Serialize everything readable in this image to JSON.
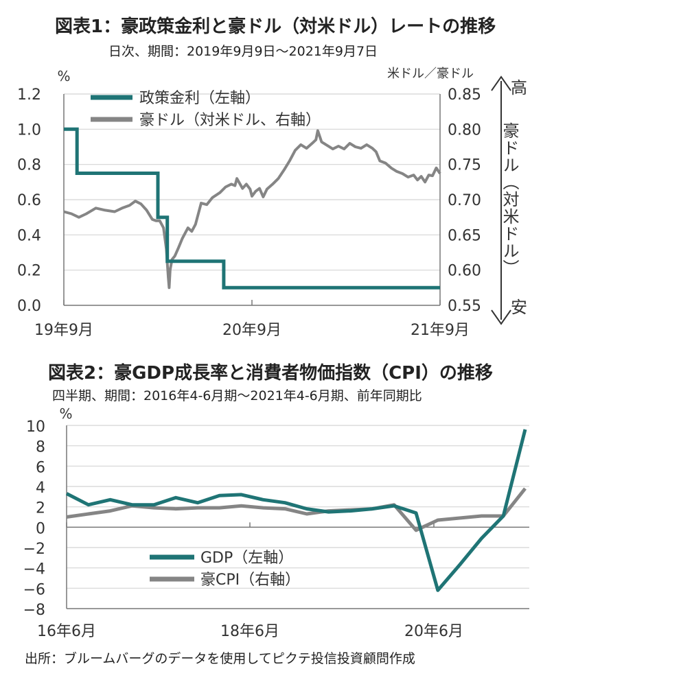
{
  "source": "出所：ブルームバーグのデータを使用してピクテ投信投資顧問作成",
  "colors": {
    "teal": "#1f7475",
    "gray": "#858585",
    "grid": "#d4d4d4",
    "axis": "#777777"
  },
  "chart_data": [
    {
      "type": "line",
      "title": "図表1：豪政策金利と豪ドル（対米ドル）レートの推移",
      "subtitle": "日次、期間：2019年9月9日～2021年9月7日",
      "ylabel_left": "%",
      "ylabel_right": "米ドル／豪ドル",
      "ylim_left": [
        0.0,
        1.2
      ],
      "ylim_right": [
        0.55,
        0.85
      ],
      "yticks_left": [
        "1.2",
        "1.0",
        "0.8",
        "0.6",
        "0.4",
        "0.2",
        "0.0"
      ],
      "yticks_right": [
        "0.85",
        "0.80",
        "0.75",
        "0.70",
        "0.65",
        "0.60",
        "0.55"
      ],
      "xticks": [
        "19年9月",
        "20年9月",
        "21年9月"
      ],
      "arrow_labels": {
        "top": "高",
        "middle": "豪ドル（対米ドル）",
        "bottom": "安"
      },
      "grid": true,
      "legend_position": "top-left",
      "series": [
        {
          "name": "政策金利（左軸）",
          "axis": "left",
          "step": true,
          "points": [
            [
              0.0,
              1.0
            ],
            [
              0.07,
              1.0
            ],
            [
              0.07,
              0.75
            ],
            [
              0.5,
              0.75
            ],
            [
              0.5,
              0.5
            ],
            [
              0.55,
              0.5
            ],
            [
              0.55,
              0.25
            ],
            [
              0.85,
              0.25
            ],
            [
              0.85,
              0.1
            ],
            [
              2.0,
              0.1
            ]
          ]
        },
        {
          "name": "豪ドル（対米ドル、右軸）",
          "axis": "right",
          "points": [
            [
              0.0,
              0.683
            ],
            [
              0.04,
              0.68
            ],
            [
              0.08,
              0.675
            ],
            [
              0.12,
              0.68
            ],
            [
              0.17,
              0.688
            ],
            [
              0.22,
              0.685
            ],
            [
              0.27,
              0.683
            ],
            [
              0.31,
              0.688
            ],
            [
              0.35,
              0.692
            ],
            [
              0.38,
              0.698
            ],
            [
              0.41,
              0.694
            ],
            [
              0.44,
              0.685
            ],
            [
              0.47,
              0.672
            ],
            [
              0.49,
              0.67
            ],
            [
              0.51,
              0.67
            ],
            [
              0.53,
              0.66
            ],
            [
              0.545,
              0.63
            ],
            [
              0.555,
              0.59
            ],
            [
              0.56,
              0.575
            ],
            [
              0.565,
              0.6
            ],
            [
              0.575,
              0.615
            ],
            [
              0.59,
              0.62
            ],
            [
              0.61,
              0.632
            ],
            [
              0.63,
              0.645
            ],
            [
              0.66,
              0.66
            ],
            [
              0.68,
              0.655
            ],
            [
              0.7,
              0.665
            ],
            [
              0.73,
              0.695
            ],
            [
              0.76,
              0.693
            ],
            [
              0.79,
              0.703
            ],
            [
              0.83,
              0.71
            ],
            [
              0.86,
              0.718
            ],
            [
              0.89,
              0.722
            ],
            [
              0.91,
              0.72
            ],
            [
              0.92,
              0.73
            ],
            [
              0.95,
              0.716
            ],
            [
              0.97,
              0.722
            ],
            [
              0.99,
              0.715
            ],
            [
              1.0,
              0.705
            ],
            [
              1.02,
              0.712
            ],
            [
              1.04,
              0.716
            ],
            [
              1.06,
              0.704
            ],
            [
              1.08,
              0.715
            ],
            [
              1.11,
              0.722
            ],
            [
              1.14,
              0.73
            ],
            [
              1.17,
              0.742
            ],
            [
              1.2,
              0.755
            ],
            [
              1.23,
              0.77
            ],
            [
              1.26,
              0.778
            ],
            [
              1.29,
              0.773
            ],
            [
              1.32,
              0.78
            ],
            [
              1.34,
              0.785
            ],
            [
              1.35,
              0.798
            ],
            [
              1.37,
              0.782
            ],
            [
              1.4,
              0.777
            ],
            [
              1.43,
              0.772
            ],
            [
              1.46,
              0.776
            ],
            [
              1.49,
              0.772
            ],
            [
              1.52,
              0.78
            ],
            [
              1.55,
              0.775
            ],
            [
              1.58,
              0.773
            ],
            [
              1.61,
              0.778
            ],
            [
              1.64,
              0.773
            ],
            [
              1.66,
              0.768
            ],
            [
              1.68,
              0.755
            ],
            [
              1.71,
              0.752
            ],
            [
              1.74,
              0.745
            ],
            [
              1.77,
              0.74
            ],
            [
              1.8,
              0.737
            ],
            [
              1.83,
              0.732
            ],
            [
              1.86,
              0.735
            ],
            [
              1.88,
              0.728
            ],
            [
              1.9,
              0.733
            ],
            [
              1.92,
              0.725
            ],
            [
              1.94,
              0.735
            ],
            [
              1.96,
              0.734
            ],
            [
              1.98,
              0.745
            ],
            [
              2.0,
              0.737
            ]
          ]
        }
      ]
    },
    {
      "type": "line",
      "title": "図表2：豪GDP成長率と消費者物価指数（CPI）の推移",
      "subtitle": "四半期、期間：2016年4-6月期～2021年4-6月期、前年同期比",
      "ylabel": "%",
      "ylim": [
        -8,
        10
      ],
      "yticks": [
        "10",
        "8",
        "6",
        "4",
        "2",
        "0",
        "−2",
        "−4",
        "−6",
        "−8"
      ],
      "xticks": [
        "16年6月",
        "18年6月",
        "20年6月"
      ],
      "grid": true,
      "legend_position": "bottom-left",
      "series": [
        {
          "name": "GDP（左軸）",
          "values": [
            3.3,
            2.2,
            2.7,
            2.2,
            2.2,
            2.9,
            2.4,
            3.1,
            3.2,
            2.7,
            2.4,
            1.8,
            1.5,
            1.6,
            1.8,
            2.1,
            1.4,
            -6.2,
            -3.7,
            -1.1,
            1.1,
            9.6
          ]
        },
        {
          "name": "豪CPI（右軸）",
          "values": [
            1.0,
            1.3,
            1.6,
            2.1,
            1.9,
            1.8,
            1.9,
            1.9,
            2.1,
            1.9,
            1.8,
            1.3,
            1.6,
            1.7,
            1.8,
            2.2,
            -0.3,
            0.7,
            0.9,
            1.1,
            1.1,
            3.8
          ]
        }
      ]
    }
  ]
}
